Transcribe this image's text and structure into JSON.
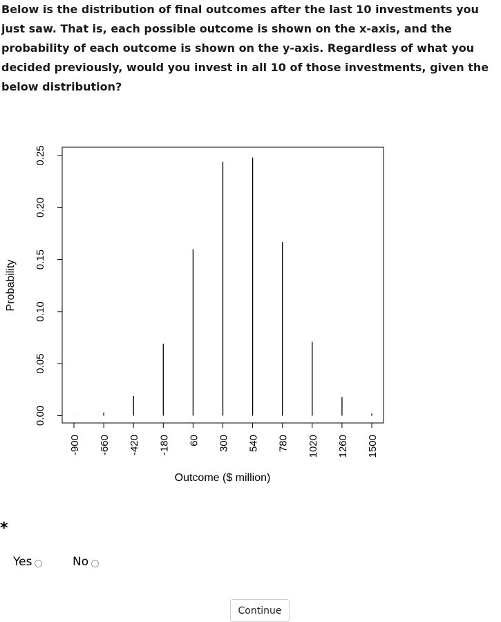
{
  "question": {
    "text": "Below is the distribution of final outcomes after the last 10 investments you just saw. That is, each possible outcome is shown on the x-axis, and the probability of each outcome is shown on the y-axis. Regardless of what you decided previously, would you invest in all 10 of those investments, given the below distribution?"
  },
  "chart_data": {
    "type": "bar",
    "xlabel": "Outcome ($ million)",
    "ylabel": "Probability",
    "categories": [
      "-900",
      "-660",
      "-420",
      "-180",
      "60",
      "300",
      "540",
      "780",
      "1020",
      "1260",
      "1500"
    ],
    "values": [
      0.0001,
      0.003,
      0.019,
      0.069,
      0.16,
      0.244,
      0.248,
      0.167,
      0.071,
      0.018,
      0.002
    ],
    "yticks": [
      "0.00",
      "0.05",
      "0.10",
      "0.15",
      "0.20",
      "0.25"
    ],
    "ylim": [
      -0.007,
      0.258
    ],
    "grid": false,
    "legend": "none"
  },
  "required_marker": "*",
  "options": {
    "yes_label": "Yes",
    "no_label": "No"
  },
  "continue_label": "Continue"
}
